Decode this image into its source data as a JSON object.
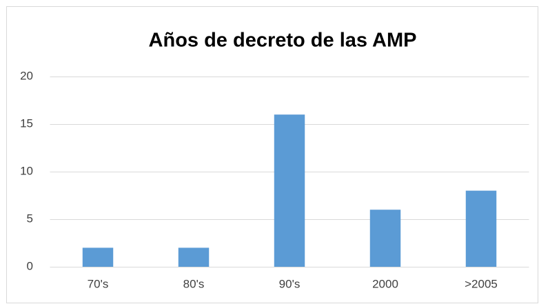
{
  "chart_data": {
    "type": "bar",
    "title": "Años de decreto de las AMP",
    "categories": [
      "70's",
      "80's",
      "90's",
      "2000",
      ">2005"
    ],
    "values": [
      2,
      2,
      16,
      6,
      8
    ],
    "color": "#5b9bd5",
    "ylim": [
      0,
      20
    ],
    "yticks": [
      0,
      5,
      10,
      15,
      20
    ],
    "grid": true
  }
}
